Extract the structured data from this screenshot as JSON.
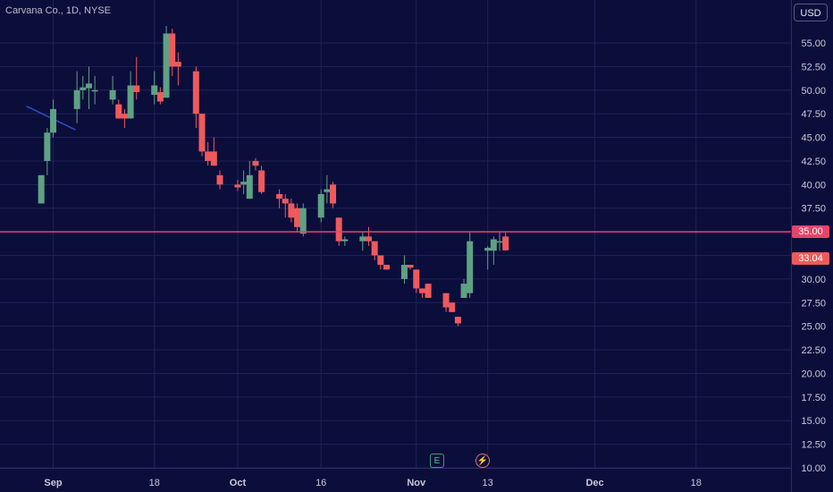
{
  "title": "Carvana Co., 1D, NYSE",
  "currency_button": "USD",
  "markers": {
    "earnings": "E",
    "dividend": "⚡"
  },
  "colors": {
    "background": "#0b0d3b",
    "grid": "#1f2356",
    "up": "#5fa183",
    "down": "#ee5a5c",
    "horizontal_line": "#e8436b",
    "trendline": "#2b4fc8",
    "axis_text": "#c9cbd6"
  },
  "chart_data": {
    "type": "candlestick",
    "title": "Carvana Co., 1D, NYSE",
    "ylim": [
      10,
      57.5
    ],
    "y_ticks": [
      10,
      12.5,
      15,
      17.5,
      20,
      22.5,
      25,
      27.5,
      30,
      32.5,
      35,
      37.5,
      40,
      42.5,
      45,
      47.5,
      50,
      52.5,
      55
    ],
    "y_tick_labels": [
      "10.00",
      "12.50",
      "15.00",
      "17.50",
      "20.00",
      "22.50",
      "25.00",
      "27.50",
      "30.00",
      "32.50",
      "35.00",
      "37.50",
      "40.00",
      "42.50",
      "45.00",
      "47.50",
      "50.00",
      "52.50",
      "55.00"
    ],
    "x_ticks": [
      {
        "label": "Sep",
        "bold": true
      },
      {
        "label": "18",
        "bold": false
      },
      {
        "label": "Oct",
        "bold": true
      },
      {
        "label": "16",
        "bold": false
      },
      {
        "label": "Nov",
        "bold": true
      },
      {
        "label": "13",
        "bold": false
      },
      {
        "label": "Dec",
        "bold": true
      },
      {
        "label": "18",
        "bold": false
      }
    ],
    "grid": true,
    "horizontal_line": {
      "value": 35.0,
      "label": "35.00"
    },
    "last_price": {
      "value": 33.04,
      "label": "33.04"
    },
    "trendline": [
      {
        "x": "Aug 29",
        "y": 48.3
      },
      {
        "x": "Sep 4",
        "y": 45.8
      }
    ],
    "candles": [
      {
        "x": "Aug 30",
        "o": 38.0,
        "h": 41.0,
        "l": 38.0,
        "c": 41.0
      },
      {
        "x": "Aug 31",
        "o": 42.5,
        "h": 46.0,
        "l": 41.0,
        "c": 45.5
      },
      {
        "x": "Sep 1",
        "o": 45.5,
        "h": 49.0,
        "l": 45.0,
        "c": 48.0
      },
      {
        "x": "Sep 5",
        "o": 48.0,
        "h": 52.0,
        "l": 46.5,
        "c": 50.0
      },
      {
        "x": "Sep 6",
        "o": 50.0,
        "h": 51.5,
        "l": 49.0,
        "c": 50.3
      },
      {
        "x": "Sep 7",
        "o": 50.2,
        "h": 52.5,
        "l": 48.0,
        "c": 50.7
      },
      {
        "x": "Sep 8",
        "o": 50.0,
        "h": 51.5,
        "l": 48.5,
        "c": 50.0
      },
      {
        "x": "Sep 11",
        "o": 49.0,
        "h": 51.5,
        "l": 48.5,
        "c": 50.0
      },
      {
        "x": "Sep 12",
        "o": 48.5,
        "h": 49.0,
        "l": 47.0,
        "c": 47.0
      },
      {
        "x": "Sep 13",
        "o": 47.5,
        "h": 48.0,
        "l": 46.0,
        "c": 47.0
      },
      {
        "x": "Sep 14",
        "o": 47.0,
        "h": 52.0,
        "l": 47.0,
        "c": 50.5
      },
      {
        "x": "Sep 15",
        "o": 50.5,
        "h": 53.5,
        "l": 49.0,
        "c": 49.8
      },
      {
        "x": "Sep 18",
        "o": 49.5,
        "h": 52.0,
        "l": 48.5,
        "c": 50.5
      },
      {
        "x": "Sep 19",
        "o": 49.8,
        "h": 50.3,
        "l": 48.5,
        "c": 48.8
      },
      {
        "x": "Sep 20",
        "o": 49.2,
        "h": 56.8,
        "l": 49.2,
        "c": 56.0
      },
      {
        "x": "Sep 21",
        "o": 56.0,
        "h": 56.5,
        "l": 51.5,
        "c": 52.5
      },
      {
        "x": "Sep 22",
        "o": 53.0,
        "h": 54.0,
        "l": 50.5,
        "c": 52.5
      },
      {
        "x": "Sep 25",
        "o": 52.0,
        "h": 52.5,
        "l": 46.0,
        "c": 47.5
      },
      {
        "x": "Sep 26",
        "o": 47.5,
        "h": 47.5,
        "l": 43.0,
        "c": 43.5
      },
      {
        "x": "Sep 27",
        "o": 43.5,
        "h": 44.5,
        "l": 42.0,
        "c": 42.5
      },
      {
        "x": "Sep 28",
        "o": 43.5,
        "h": 45.0,
        "l": 42.0,
        "c": 42.0
      },
      {
        "x": "Sep 29",
        "o": 41.0,
        "h": 41.5,
        "l": 39.5,
        "c": 40.0
      },
      {
        "x": "Oct 2",
        "o": 40.0,
        "h": 40.5,
        "l": 39.3,
        "c": 39.7
      },
      {
        "x": "Oct 3",
        "o": 40.0,
        "h": 41.5,
        "l": 39.0,
        "c": 40.3
      },
      {
        "x": "Oct 4",
        "o": 38.5,
        "h": 42.5,
        "l": 38.5,
        "c": 41.0
      },
      {
        "x": "Oct 5",
        "o": 42.5,
        "h": 42.8,
        "l": 41.5,
        "c": 42.0
      },
      {
        "x": "Oct 6",
        "o": 41.5,
        "h": 42.0,
        "l": 39.0,
        "c": 39.2
      },
      {
        "x": "Oct 9",
        "o": 39.0,
        "h": 39.5,
        "l": 37.5,
        "c": 38.5
      },
      {
        "x": "Oct 10",
        "o": 38.5,
        "h": 39.0,
        "l": 36.5,
        "c": 38.0
      },
      {
        "x": "Oct 11",
        "o": 38.0,
        "h": 38.5,
        "l": 36.0,
        "c": 36.5
      },
      {
        "x": "Oct 12",
        "o": 37.5,
        "h": 38.0,
        "l": 35.0,
        "c": 35.5
      },
      {
        "x": "Oct 13",
        "o": 34.8,
        "h": 38.0,
        "l": 34.5,
        "c": 37.5
      },
      {
        "x": "Oct 16",
        "o": 36.5,
        "h": 39.5,
        "l": 36.0,
        "c": 39.0
      },
      {
        "x": "Oct 17",
        "o": 39.2,
        "h": 41.0,
        "l": 38.0,
        "c": 39.5
      },
      {
        "x": "Oct 18",
        "o": 40.0,
        "h": 40.3,
        "l": 37.5,
        "c": 38.0
      },
      {
        "x": "Oct 19",
        "o": 36.5,
        "h": 36.5,
        "l": 33.5,
        "c": 34.0
      },
      {
        "x": "Oct 20",
        "o": 34.0,
        "h": 34.5,
        "l": 33.5,
        "c": 34.2
      },
      {
        "x": "Oct 23",
        "o": 34.0,
        "h": 35.0,
        "l": 33.0,
        "c": 34.5
      },
      {
        "x": "Oct 24",
        "o": 34.5,
        "h": 35.5,
        "l": 33.5,
        "c": 34.0
      },
      {
        "x": "Oct 25",
        "o": 34.0,
        "h": 34.0,
        "l": 32.0,
        "c": 32.5
      },
      {
        "x": "Oct 26",
        "o": 32.5,
        "h": 32.5,
        "l": 31.0,
        "c": 31.5
      },
      {
        "x": "Oct 27",
        "o": 31.5,
        "h": 31.5,
        "l": 31.0,
        "c": 31.0
      },
      {
        "x": "Oct 30",
        "o": 30.0,
        "h": 32.5,
        "l": 29.5,
        "c": 31.5
      },
      {
        "x": "Oct 31",
        "o": 31.5,
        "h": 31.5,
        "l": 31.0,
        "c": 31.2
      },
      {
        "x": "Nov 1",
        "o": 31.0,
        "h": 31.0,
        "l": 28.5,
        "c": 29.0
      },
      {
        "x": "Nov 2",
        "o": 29.0,
        "h": 29.0,
        "l": 28.0,
        "c": 28.5
      },
      {
        "x": "Nov 3",
        "o": 29.5,
        "h": 29.5,
        "l": 28.0,
        "c": 28.0
      },
      {
        "x": "Nov 6",
        "o": 28.5,
        "h": 28.5,
        "l": 26.5,
        "c": 27.0
      },
      {
        "x": "Nov 7",
        "o": 27.5,
        "h": 27.5,
        "l": 26.5,
        "c": 26.5
      },
      {
        "x": "Nov 8",
        "o": 26.0,
        "h": 26.0,
        "l": 25.0,
        "c": 25.3
      },
      {
        "x": "Nov 9",
        "o": 28.0,
        "h": 30.0,
        "l": 28.0,
        "c": 29.5
      },
      {
        "x": "Nov 10",
        "o": 28.5,
        "h": 35.0,
        "l": 28.0,
        "c": 34.0
      },
      {
        "x": "Nov 13",
        "o": 33.0,
        "h": 33.5,
        "l": 31.0,
        "c": 33.3
      },
      {
        "x": "Nov 14",
        "o": 33.0,
        "h": 34.5,
        "l": 31.5,
        "c": 34.2
      },
      {
        "x": "Nov 15",
        "o": 34.0,
        "h": 35.0,
        "l": 33.0,
        "c": 34.0
      },
      {
        "x": "Nov 16",
        "o": 34.5,
        "h": 35.0,
        "l": 33.0,
        "c": 33.04
      }
    ]
  }
}
